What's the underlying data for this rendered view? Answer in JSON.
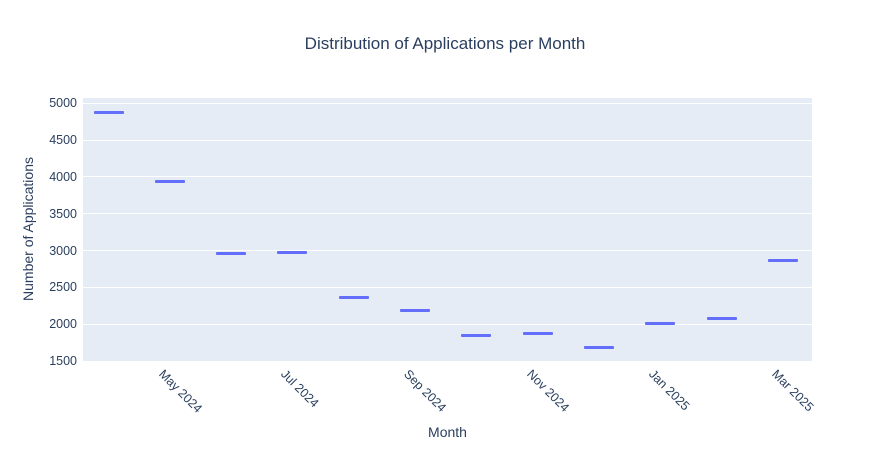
{
  "title": "Distribution of Applications per Month",
  "chart_data": {
    "type": "scatter",
    "marker_symbol": "horizontal-dash",
    "title": "Distribution of Applications per Month",
    "xlabel": "Month",
    "ylabel": "Number of Applications",
    "x": [
      "Apr 2024",
      "May 2024",
      "Jun 2024",
      "Jul 2024",
      "Aug 2024",
      "Sep 2024",
      "Oct 2024",
      "Nov 2024",
      "Dec 2024",
      "Jan 2025",
      "Feb 2025",
      "Mar 2025"
    ],
    "values": [
      4875,
      3935,
      2965,
      2980,
      2360,
      2190,
      1840,
      1870,
      1685,
      2005,
      2075,
      2870
    ],
    "x_tick_labels": [
      "May 2024",
      "Jul 2024",
      "Sep 2024",
      "Nov 2024",
      "Jan 2025",
      "Mar 2025"
    ],
    "y_ticks": [
      1500,
      2000,
      2500,
      3000,
      3500,
      4000,
      4500,
      5000
    ],
    "ylim": [
      1500,
      5073
    ],
    "grid": true,
    "legend": "none",
    "colors": {
      "marker": "#636efa",
      "plot_background": "#e5ecf6",
      "gridline": "#ffffff",
      "text": "#2a3f5f",
      "page_background": "#ffffff"
    }
  }
}
